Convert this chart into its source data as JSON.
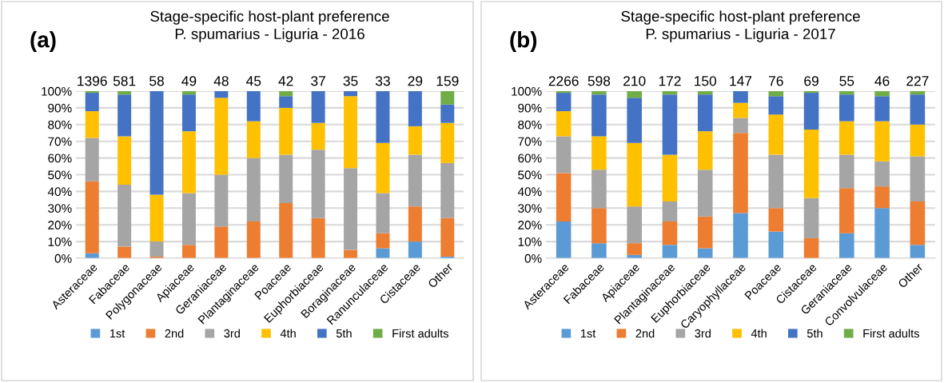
{
  "chart_data": [
    {
      "type": "bar",
      "stacked": true,
      "title": "Stage-specific host-plant preference",
      "subtitle": "P. spumarius - Liguria - 2016",
      "annotations": [
        "(a)",
        "1396",
        "581",
        "58",
        "49",
        "48",
        "45",
        "42",
        "37",
        "35",
        "33",
        "29",
        "159"
      ],
      "categories": [
        "Asteraceae",
        "Fabaceae",
        "Polygonaceae",
        "Apiaceae",
        "Geraniaceae",
        "Plantaginaceae",
        "Poaceae",
        "Euphorbiaceae",
        "Boraginaceae",
        "Ranunculaceae",
        "Cistaceae",
        "Other"
      ],
      "series": [
        {
          "name": "1st",
          "color": "#5b9bd5",
          "values": [
            3,
            null,
            null,
            null,
            null,
            null,
            null,
            null,
            null,
            6,
            10,
            1
          ]
        },
        {
          "name": "2nd",
          "color": "#ed7d31",
          "values": [
            43,
            7,
            1,
            8,
            19,
            22,
            33,
            24,
            5,
            9,
            21,
            23
          ]
        },
        {
          "name": "3rd",
          "color": "#a5a5a5",
          "values": [
            26,
            37,
            9,
            31,
            31,
            38,
            29,
            41,
            49,
            24,
            31,
            33
          ]
        },
        {
          "name": "4th",
          "color": "#ffc000",
          "values": [
            16,
            29,
            28,
            37,
            46,
            22,
            28,
            16,
            43,
            30,
            17,
            24
          ]
        },
        {
          "name": "5th",
          "color": "#4472c4",
          "values": [
            11,
            25,
            62,
            22,
            4,
            18,
            7,
            19,
            3,
            31,
            21,
            11
          ]
        },
        {
          "name": "First adults",
          "color": "#70ad47",
          "values": [
            1,
            2,
            null,
            2,
            null,
            null,
            3,
            null,
            null,
            null,
            null,
            8
          ]
        }
      ],
      "ylim": [
        0,
        100
      ],
      "yticks": [
        {
          "value": 0,
          "label": "0%"
        },
        {
          "value": 10,
          "label": "10%"
        },
        {
          "value": 20,
          "label": "20%"
        },
        {
          "value": 30,
          "label": "30%"
        },
        {
          "value": 40,
          "label": "40%"
        },
        {
          "value": 50,
          "label": "50%"
        },
        {
          "value": 60,
          "label": "60%"
        },
        {
          "value": 70,
          "label": "70%"
        },
        {
          "value": 80,
          "label": "80%"
        },
        {
          "value": 90,
          "label": "90%"
        },
        {
          "value": 100,
          "label": "100%"
        }
      ],
      "grid": "y",
      "legend": "bottom"
    },
    {
      "type": "bar",
      "stacked": true,
      "title": "Stage-specific host-plant preference",
      "subtitle": "P. spumarius - Liguria - 2017",
      "annotations": [
        "(b)",
        "2266",
        "598",
        "210",
        "172",
        "150",
        "147",
        "76",
        "69",
        "55",
        "46",
        "227"
      ],
      "categories": [
        "Asteraceae",
        "Fabaceae",
        "Apiaceae",
        "Plantaginaceae",
        "Euphorbiaceae",
        "Caryophyllaceae",
        "Poaceae",
        "Cistaceae",
        "Geraniaceae",
        "Convolvulaceae",
        "Other"
      ],
      "series": [
        {
          "name": "1st",
          "color": "#5b9bd5",
          "values": [
            22,
            9,
            2,
            8,
            6,
            27,
            16,
            null,
            15,
            30,
            8
          ]
        },
        {
          "name": "2nd",
          "color": "#ed7d31",
          "values": [
            29,
            21,
            7,
            14,
            19,
            48,
            14,
            12,
            27,
            13,
            26
          ]
        },
        {
          "name": "3rd",
          "color": "#a5a5a5",
          "values": [
            22,
            23,
            22,
            12,
            28,
            9,
            32,
            24,
            20,
            15,
            27
          ]
        },
        {
          "name": "4th",
          "color": "#ffc000",
          "values": [
            15,
            20,
            38,
            28,
            23,
            9,
            24,
            41,
            20,
            24,
            19
          ]
        },
        {
          "name": "5th",
          "color": "#4472c4",
          "values": [
            11,
            25,
            27,
            36,
            22,
            7,
            11,
            22,
            16,
            15,
            18
          ]
        },
        {
          "name": "First adults",
          "color": "#70ad47",
          "values": [
            1,
            2,
            4,
            2,
            2,
            null,
            3,
            1,
            2,
            3,
            2
          ]
        }
      ],
      "ylim": [
        0,
        100
      ],
      "yticks": [
        {
          "value": 0,
          "label": "0%"
        },
        {
          "value": 10,
          "label": "10%"
        },
        {
          "value": 20,
          "label": "20%"
        },
        {
          "value": 30,
          "label": "30%"
        },
        {
          "value": 40,
          "label": "40%"
        },
        {
          "value": 50,
          "label": "50%"
        },
        {
          "value": 60,
          "label": "60%"
        },
        {
          "value": 70,
          "label": "70%"
        },
        {
          "value": 80,
          "label": "80%"
        },
        {
          "value": 90,
          "label": "90%"
        },
        {
          "value": 100,
          "label": "100%"
        }
      ],
      "grid": "y",
      "legend": "bottom"
    }
  ]
}
